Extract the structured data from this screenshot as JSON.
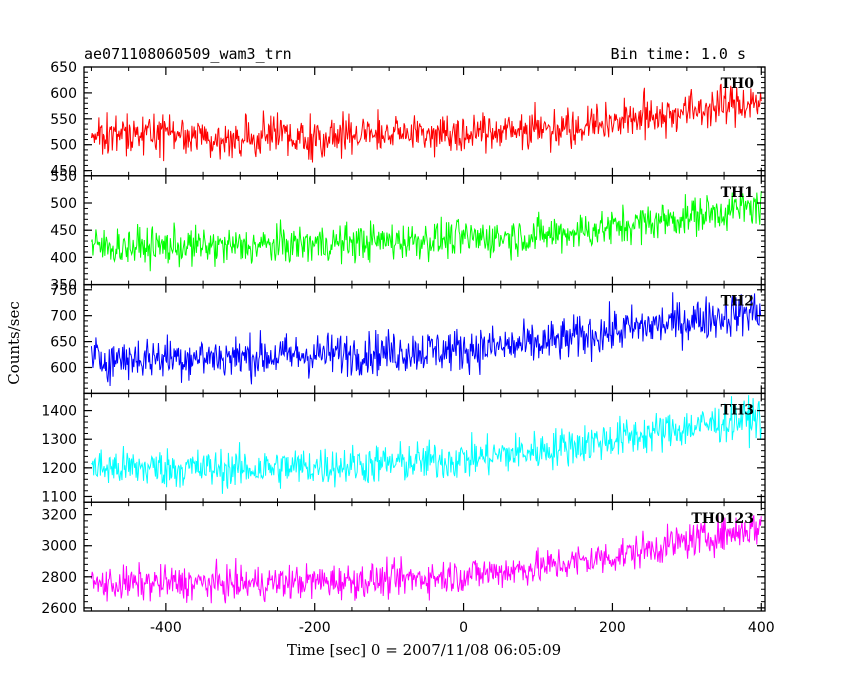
{
  "chart_data": {
    "type": "line",
    "title": "ae071108060509_wam3_trn",
    "bin_time_label": "Bin time: 1.0 s",
    "xlabel": "Time [sec] 0 = 2007/11/08 06:05:09",
    "ylabel": "Counts/sec",
    "xlim": [
      -510,
      405
    ],
    "xticks": [
      -400,
      -200,
      0,
      200,
      400
    ],
    "x_step": 1.0,
    "grid": false,
    "panels": [
      {
        "name": "TH0",
        "color": "#ff0000",
        "ylim": [
          440,
          650
        ],
        "yticks": [
          450,
          500,
          550,
          600,
          650
        ],
        "x": [
          -500,
          -400,
          -300,
          -200,
          -100,
          0,
          100,
          200,
          300,
          400
        ],
        "y": [
          515,
          520,
          512,
          515,
          520,
          525,
          530,
          545,
          565,
          585
        ],
        "noise": 28
      },
      {
        "name": "TH1",
        "color": "#00ff00",
        "ylim": [
          350,
          550
        ],
        "yticks": [
          350,
          400,
          450,
          500,
          550
        ],
        "x": [
          -500,
          -400,
          -300,
          -200,
          -100,
          0,
          100,
          200,
          300,
          400
        ],
        "y": [
          420,
          420,
          420,
          425,
          430,
          435,
          440,
          455,
          475,
          495
        ],
        "noise": 25
      },
      {
        "name": "TH2",
        "color": "#0000ff",
        "ylim": [
          550,
          760
        ],
        "yticks": [
          600,
          650,
          700,
          750
        ],
        "x": [
          -500,
          -400,
          -300,
          -200,
          -100,
          0,
          100,
          200,
          300,
          400
        ],
        "y": [
          615,
          620,
          620,
          625,
          630,
          635,
          645,
          670,
          690,
          710
        ],
        "noise": 30
      },
      {
        "name": "TH3",
        "color": "#00ffff",
        "ylim": [
          1080,
          1460
        ],
        "yticks": [
          1100,
          1200,
          1300,
          1400
        ],
        "x": [
          -500,
          -400,
          -300,
          -200,
          -100,
          0,
          100,
          200,
          300,
          400
        ],
        "y": [
          1200,
          1200,
          1195,
          1205,
          1215,
          1230,
          1260,
          1300,
          1340,
          1380
        ],
        "noise": 50
      },
      {
        "name": "TH0123",
        "color": "#ff00ff",
        "ylim": [
          2580,
          3280
        ],
        "yticks": [
          2600,
          2800,
          3000,
          3200
        ],
        "x": [
          -500,
          -400,
          -300,
          -200,
          -100,
          0,
          100,
          200,
          300,
          400
        ],
        "y": [
          2750,
          2760,
          2755,
          2770,
          2780,
          2810,
          2860,
          2930,
          3030,
          3120
        ],
        "noise": 80
      }
    ]
  }
}
